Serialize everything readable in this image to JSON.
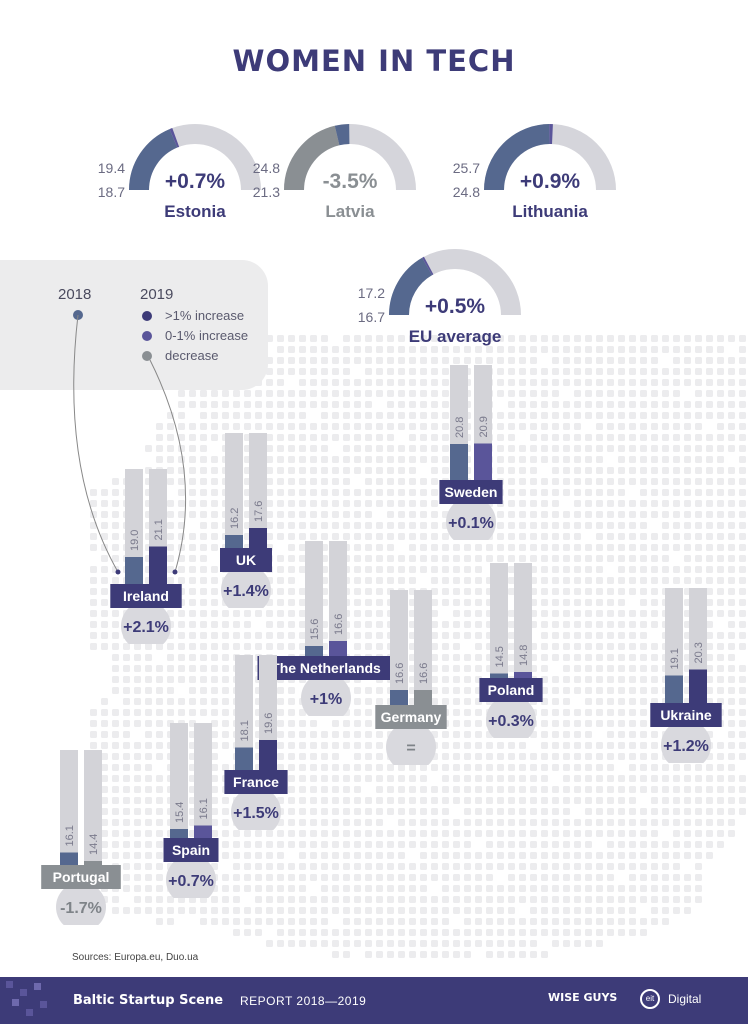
{
  "title": "WOMEN IN TECH",
  "colors": {
    "navy": "#3d3b78",
    "purple": "#5a559a",
    "steel": "#55688f",
    "gray": "#8a8f93",
    "track": "#d5d5db",
    "bar_track": "#d3d3d8"
  },
  "legend": {
    "year_2018": "2018",
    "year_2019": "2019",
    "items": [
      {
        "label": ">1% increase",
        "color": "#3d3b78"
      },
      {
        "label": "0-1% increase",
        "color": "#5a559a"
      },
      {
        "label": "decrease",
        "color": "#8a8f93"
      }
    ]
  },
  "chart_data": {
    "type": "bar",
    "title": "WOMEN IN TECH",
    "unit": "%",
    "ylim": [
      0,
      50
    ],
    "years": [
      "2018",
      "2019"
    ],
    "gauges": [
      {
        "name": "Estonia",
        "v2018": 18.7,
        "v2019": 19.4,
        "change": "+0.7%",
        "category": "0-1% increase",
        "label_2018": "18.7",
        "label_2019": "19.4"
      },
      {
        "name": "Latvia",
        "v2018": 24.8,
        "v2019": 21.3,
        "change": "-3.5%",
        "category": "decrease",
        "label_2018": "24.8",
        "label_2019": "21.3"
      },
      {
        "name": "Lithuania",
        "v2018": 24.8,
        "v2019": 25.7,
        "change": "+0.9%",
        "category": "0-1% increase",
        "label_2018": "24.8",
        "label_2019": "25.7"
      },
      {
        "name": "EU average",
        "v2018": 16.7,
        "v2019": 17.2,
        "change": "+0.5%",
        "category": "0-1% increase",
        "label_2018": "16.7",
        "label_2019": "17.2"
      }
    ],
    "countries": [
      {
        "name": "Ireland",
        "v2018": 19.0,
        "v2019": 21.1,
        "label_2018": "19.0",
        "label_2019": "21.1",
        "change": "+2.1%",
        "category": ">1% increase"
      },
      {
        "name": "UK",
        "v2018": 16.2,
        "v2019": 17.6,
        "label_2018": "16.2",
        "label_2019": "17.6",
        "change": "+1.4%",
        "category": ">1% increase"
      },
      {
        "name": "The Netherlands",
        "v2018": 15.6,
        "v2019": 16.6,
        "label_2018": "15.6",
        "label_2019": "16.6",
        "change": "+1%",
        "category": "0-1% increase"
      },
      {
        "name": "Germany",
        "v2018": 16.6,
        "v2019": 16.6,
        "label_2018": "16.6",
        "label_2019": "16.6",
        "change": "=",
        "category": "decrease"
      },
      {
        "name": "Sweden",
        "v2018": 20.8,
        "v2019": 20.9,
        "label_2018": "20.8",
        "label_2019": "20.9",
        "change": "+0.1%",
        "category": "0-1% increase"
      },
      {
        "name": "Poland",
        "v2018": 14.5,
        "v2019": 14.8,
        "label_2018": "14.5",
        "label_2019": "14.8",
        "change": "+0.3%",
        "category": "0-1% increase"
      },
      {
        "name": "Ukraine",
        "v2018": 19.1,
        "v2019": 20.3,
        "label_2018": "19.1",
        "label_2019": "20.3",
        "change": "+1.2%",
        "category": ">1% increase"
      },
      {
        "name": "France",
        "v2018": 18.1,
        "v2019": 19.6,
        "label_2018": "18.1",
        "label_2019": "19.6",
        "change": "+1.5%",
        "category": ">1% increase"
      },
      {
        "name": "Spain",
        "v2018": 15.4,
        "v2019": 16.1,
        "label_2018": "15.4",
        "label_2019": "16.1",
        "change": "+0.7%",
        "category": "0-1% increase"
      },
      {
        "name": "Portugal",
        "v2018": 16.1,
        "v2019": 14.4,
        "label_2018": "16.1",
        "label_2019": "14.4",
        "change": "-1.7%",
        "category": "decrease"
      }
    ]
  },
  "sources": "Sources: Europa.eu, Duo.ua",
  "footer": {
    "title": "Baltic Startup Scene",
    "subtitle": "REPORT 2018—2019",
    "logo_wiseguys": "WISE GUYS",
    "logo_eit": "Digital",
    "logo_eit_mark": "eit"
  }
}
